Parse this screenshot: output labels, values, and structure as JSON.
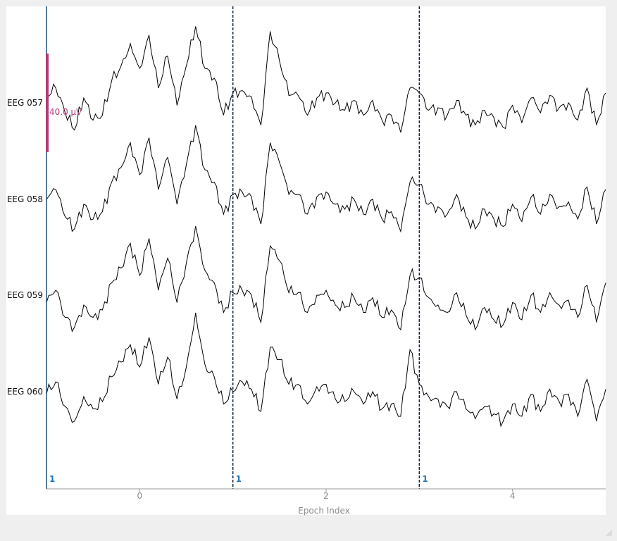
{
  "chart_data": {
    "type": "line",
    "xlabel": "Epoch Index",
    "xlim": [
      -1.0,
      5.0
    ],
    "xticks": [
      0,
      2,
      4
    ],
    "channels": [
      "EEG 057",
      "EEG 058",
      "EEG 059",
      "EEG 060"
    ],
    "epoch_boundaries": [
      -1.0,
      1.0,
      3.0
    ],
    "epoch_labels": [
      "1",
      "1",
      "1"
    ],
    "scale_bar": {
      "label": "40.0 µV",
      "value_uv": 40.0
    },
    "series": [
      {
        "name": "EEG 057",
        "x": [
          -1.0,
          -0.9,
          -0.8,
          -0.7,
          -0.6,
          -0.5,
          -0.4,
          -0.3,
          -0.2,
          -0.1,
          0.0,
          0.1,
          0.2,
          0.3,
          0.4,
          0.5,
          0.6,
          0.7,
          0.8,
          0.9,
          1.0,
          1.1,
          1.2,
          1.3,
          1.4,
          1.5,
          1.6,
          1.7,
          1.8,
          1.9,
          2.0,
          2.1,
          2.2,
          2.3,
          2.4,
          2.5,
          2.6,
          2.7,
          2.8,
          2.9,
          3.0,
          3.1,
          3.2,
          3.3,
          3.4,
          3.5,
          3.6,
          3.7,
          3.8,
          3.9,
          4.0,
          4.1,
          4.2,
          4.3,
          4.4,
          4.5,
          4.6,
          4.7,
          4.8,
          4.9,
          5.0
        ],
        "y": [
          5,
          12,
          -8,
          -22,
          4,
          -14,
          -10,
          18,
          30,
          48,
          28,
          55,
          12,
          38,
          -2,
          30,
          62,
          28,
          20,
          -10,
          8,
          10,
          5,
          -18,
          58,
          34,
          6,
          6,
          -10,
          4,
          8,
          0,
          -6,
          2,
          -10,
          2,
          -14,
          -10,
          -24,
          12,
          8,
          -6,
          -4,
          -10,
          2,
          -10,
          -18,
          -6,
          -12,
          -20,
          -2,
          -16,
          4,
          -8,
          6,
          -4,
          0,
          -14,
          12,
          -18,
          8
        ]
      },
      {
        "name": "EEG 058",
        "x": [
          -1.0,
          -0.9,
          -0.8,
          -0.7,
          -0.6,
          -0.5,
          -0.4,
          -0.3,
          -0.2,
          -0.1,
          0.0,
          0.1,
          0.2,
          0.3,
          0.4,
          0.5,
          0.6,
          0.7,
          0.8,
          0.9,
          1.0,
          1.1,
          1.2,
          1.3,
          1.4,
          1.5,
          1.6,
          1.7,
          1.8,
          1.9,
          2.0,
          2.1,
          2.2,
          2.3,
          2.4,
          2.5,
          2.6,
          2.7,
          2.8,
          2.9,
          3.0,
          3.1,
          3.2,
          3.3,
          3.4,
          3.5,
          3.6,
          3.7,
          3.8,
          3.9,
          4.0,
          4.1,
          4.2,
          4.3,
          4.4,
          4.5,
          4.6,
          4.7,
          4.8,
          4.9,
          5.0
        ],
        "y": [
          0,
          8,
          -14,
          -24,
          -4,
          -16,
          -10,
          14,
          26,
          46,
          20,
          50,
          8,
          34,
          -4,
          28,
          60,
          24,
          14,
          -12,
          4,
          6,
          2,
          -20,
          46,
          30,
          4,
          4,
          -12,
          2,
          6,
          -4,
          -8,
          0,
          -12,
          0,
          -16,
          -10,
          -26,
          14,
          12,
          -4,
          -6,
          -12,
          4,
          -14,
          -24,
          -8,
          -16,
          -22,
          -4,
          -18,
          2,
          -12,
          4,
          -6,
          -2,
          -16,
          10,
          -20,
          8
        ]
      },
      {
        "name": "EEG 059",
        "x": [
          -1.0,
          -0.9,
          -0.8,
          -0.7,
          -0.6,
          -0.5,
          -0.4,
          -0.3,
          -0.2,
          -0.1,
          0.0,
          0.1,
          0.2,
          0.3,
          0.4,
          0.5,
          0.6,
          0.7,
          0.8,
          0.9,
          1.0,
          1.1,
          1.2,
          1.3,
          1.4,
          1.5,
          1.6,
          1.7,
          1.8,
          1.9,
          2.0,
          2.1,
          2.2,
          2.3,
          2.4,
          2.5,
          2.6,
          2.7,
          2.8,
          2.9,
          3.0,
          3.1,
          3.2,
          3.3,
          3.4,
          3.5,
          3.6,
          3.7,
          3.8,
          3.9,
          4.0,
          4.1,
          4.2,
          4.3,
          4.4,
          4.5,
          4.6,
          4.7,
          4.8,
          4.9,
          5.0
        ],
        "y": [
          -6,
          4,
          -18,
          -26,
          -8,
          -18,
          -12,
          10,
          22,
          42,
          16,
          46,
          4,
          30,
          -6,
          26,
          56,
          20,
          10,
          -14,
          2,
          4,
          0,
          -22,
          40,
          28,
          2,
          2,
          -14,
          0,
          4,
          -8,
          -10,
          -2,
          -14,
          -2,
          -18,
          -12,
          -28,
          16,
          14,
          -2,
          -8,
          -14,
          2,
          -16,
          -28,
          -10,
          -20,
          -24,
          -6,
          -20,
          0,
          -14,
          2,
          -8,
          -4,
          -18,
          8,
          -22,
          10
        ]
      },
      {
        "name": "EEG 060",
        "x": [
          -1.0,
          -0.9,
          -0.8,
          -0.7,
          -0.6,
          -0.5,
          -0.4,
          -0.3,
          -0.2,
          -0.1,
          0.0,
          0.1,
          0.2,
          0.3,
          0.4,
          0.5,
          0.6,
          0.7,
          0.8,
          0.9,
          1.0,
          1.1,
          1.2,
          1.3,
          1.4,
          1.5,
          1.6,
          1.7,
          1.8,
          1.9,
          2.0,
          2.1,
          2.2,
          2.3,
          2.4,
          2.5,
          2.6,
          2.7,
          2.8,
          2.9,
          3.0,
          3.1,
          3.2,
          3.3,
          3.4,
          3.5,
          3.6,
          3.7,
          3.8,
          3.9,
          4.0,
          4.1,
          4.2,
          4.3,
          4.4,
          4.5,
          4.6,
          4.7,
          4.8,
          4.9,
          5.0
        ],
        "y": [
          -2,
          8,
          -12,
          -24,
          -4,
          -14,
          -8,
          12,
          24,
          38,
          20,
          44,
          6,
          28,
          -6,
          20,
          64,
          22,
          12,
          -10,
          0,
          8,
          2,
          -16,
          36,
          26,
          6,
          6,
          -10,
          4,
          6,
          -6,
          -8,
          0,
          -10,
          0,
          -14,
          -10,
          -20,
          34,
          6,
          -4,
          -6,
          -12,
          0,
          -14,
          -22,
          -12,
          -18,
          -24,
          -10,
          -20,
          -2,
          -16,
          2,
          -8,
          -2,
          -20,
          10,
          -24,
          2
        ]
      }
    ]
  }
}
